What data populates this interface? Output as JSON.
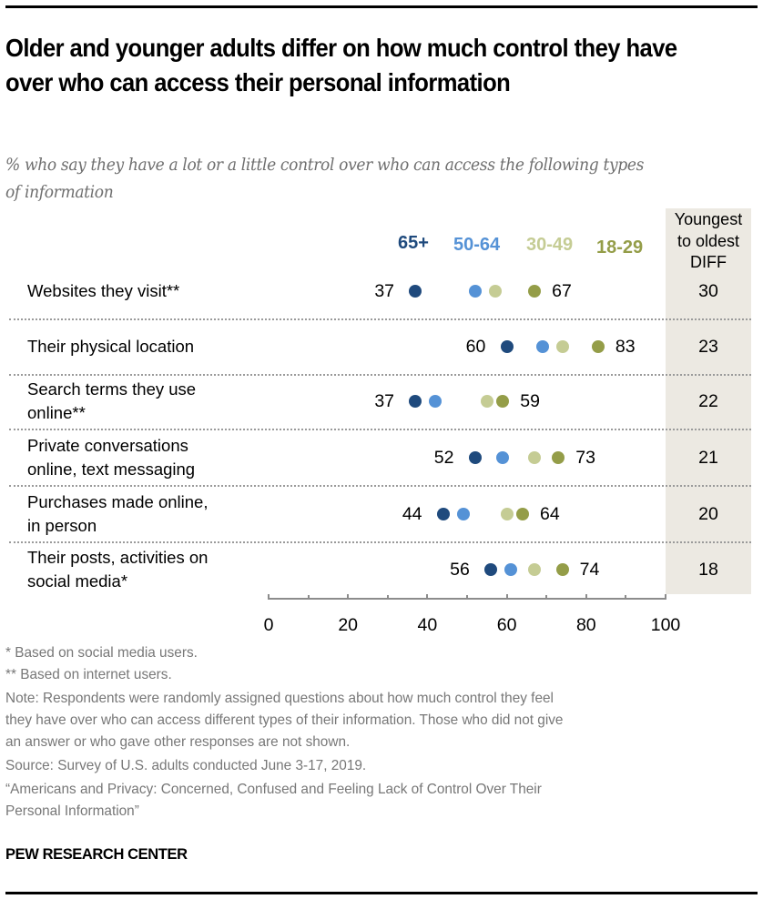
{
  "title": "Older and younger adults differ on how much control they have over who can access their personal information",
  "subtitle": "% who say they have a lot or a little control over who can access the following types of information",
  "diff_header": [
    "Youngest",
    "to oldest",
    "DIFF"
  ],
  "chart_data": {
    "type": "scatter",
    "subtype": "dot-plot",
    "title": "Older and younger adults differ on how much control they have over who can access their personal information",
    "subtitle": "% who say they have a lot or a little control over who can access the following types of information",
    "xlabel": "",
    "ylabel": "",
    "xlim": [
      0,
      100
    ],
    "x_ticks": [
      0,
      20,
      40,
      60,
      80,
      100
    ],
    "x_minor_ticks": [
      10,
      30,
      50,
      70,
      90
    ],
    "grid": false,
    "legend_placement": "top",
    "categories": [
      "Websites they visit**",
      "Their physical location",
      "Search terms they use online**",
      "Private conversations online, text messaging",
      "Purchases made online, in person",
      "Their posts, activities on social media*"
    ],
    "category_lines": [
      [
        "Websites they visit**"
      ],
      [
        "Their physical location"
      ],
      [
        "Search terms they use",
        "online**"
      ],
      [
        "Private conversations",
        "online, text messaging"
      ],
      [
        "Purchases made online,",
        "in person"
      ],
      [
        "Their posts, activities on",
        "social media*"
      ]
    ],
    "series": [
      {
        "name": "65+",
        "color": "#1f4a7d",
        "values": [
          37,
          60,
          37,
          52,
          44,
          56
        ],
        "labeled": true
      },
      {
        "name": "50-64",
        "color": "#5592d6",
        "values": [
          52,
          69,
          42,
          59,
          49,
          61
        ],
        "labeled": false
      },
      {
        "name": "30-49",
        "color": "#c5cc94",
        "values": [
          57,
          74,
          55,
          67,
          60,
          67
        ],
        "labeled": false
      },
      {
        "name": "18-29",
        "color": "#949d48",
        "values": [
          67,
          83,
          59,
          73,
          64,
          74
        ],
        "labeled": true
      }
    ],
    "diff_column": {
      "header": "Youngest to oldest DIFF",
      "values": [
        30,
        23,
        22,
        21,
        20,
        18
      ]
    }
  },
  "footnotes": [
    "* Based on social media users.",
    "** Based on internet users.",
    "Note: Respondents were randomly assigned questions about how much control they feel",
    "they have over who can access different types of their information. Those who did not give",
    "an answer or who gave other responses are not shown.",
    "Source: Survey of U.S. adults conducted June 3-17, 2019.",
    "“Americans and Privacy: Concerned, Confused and Feeling Lack of Control Over Their",
    "Personal Information”"
  ],
  "brand": "PEW RESEARCH CENTER"
}
